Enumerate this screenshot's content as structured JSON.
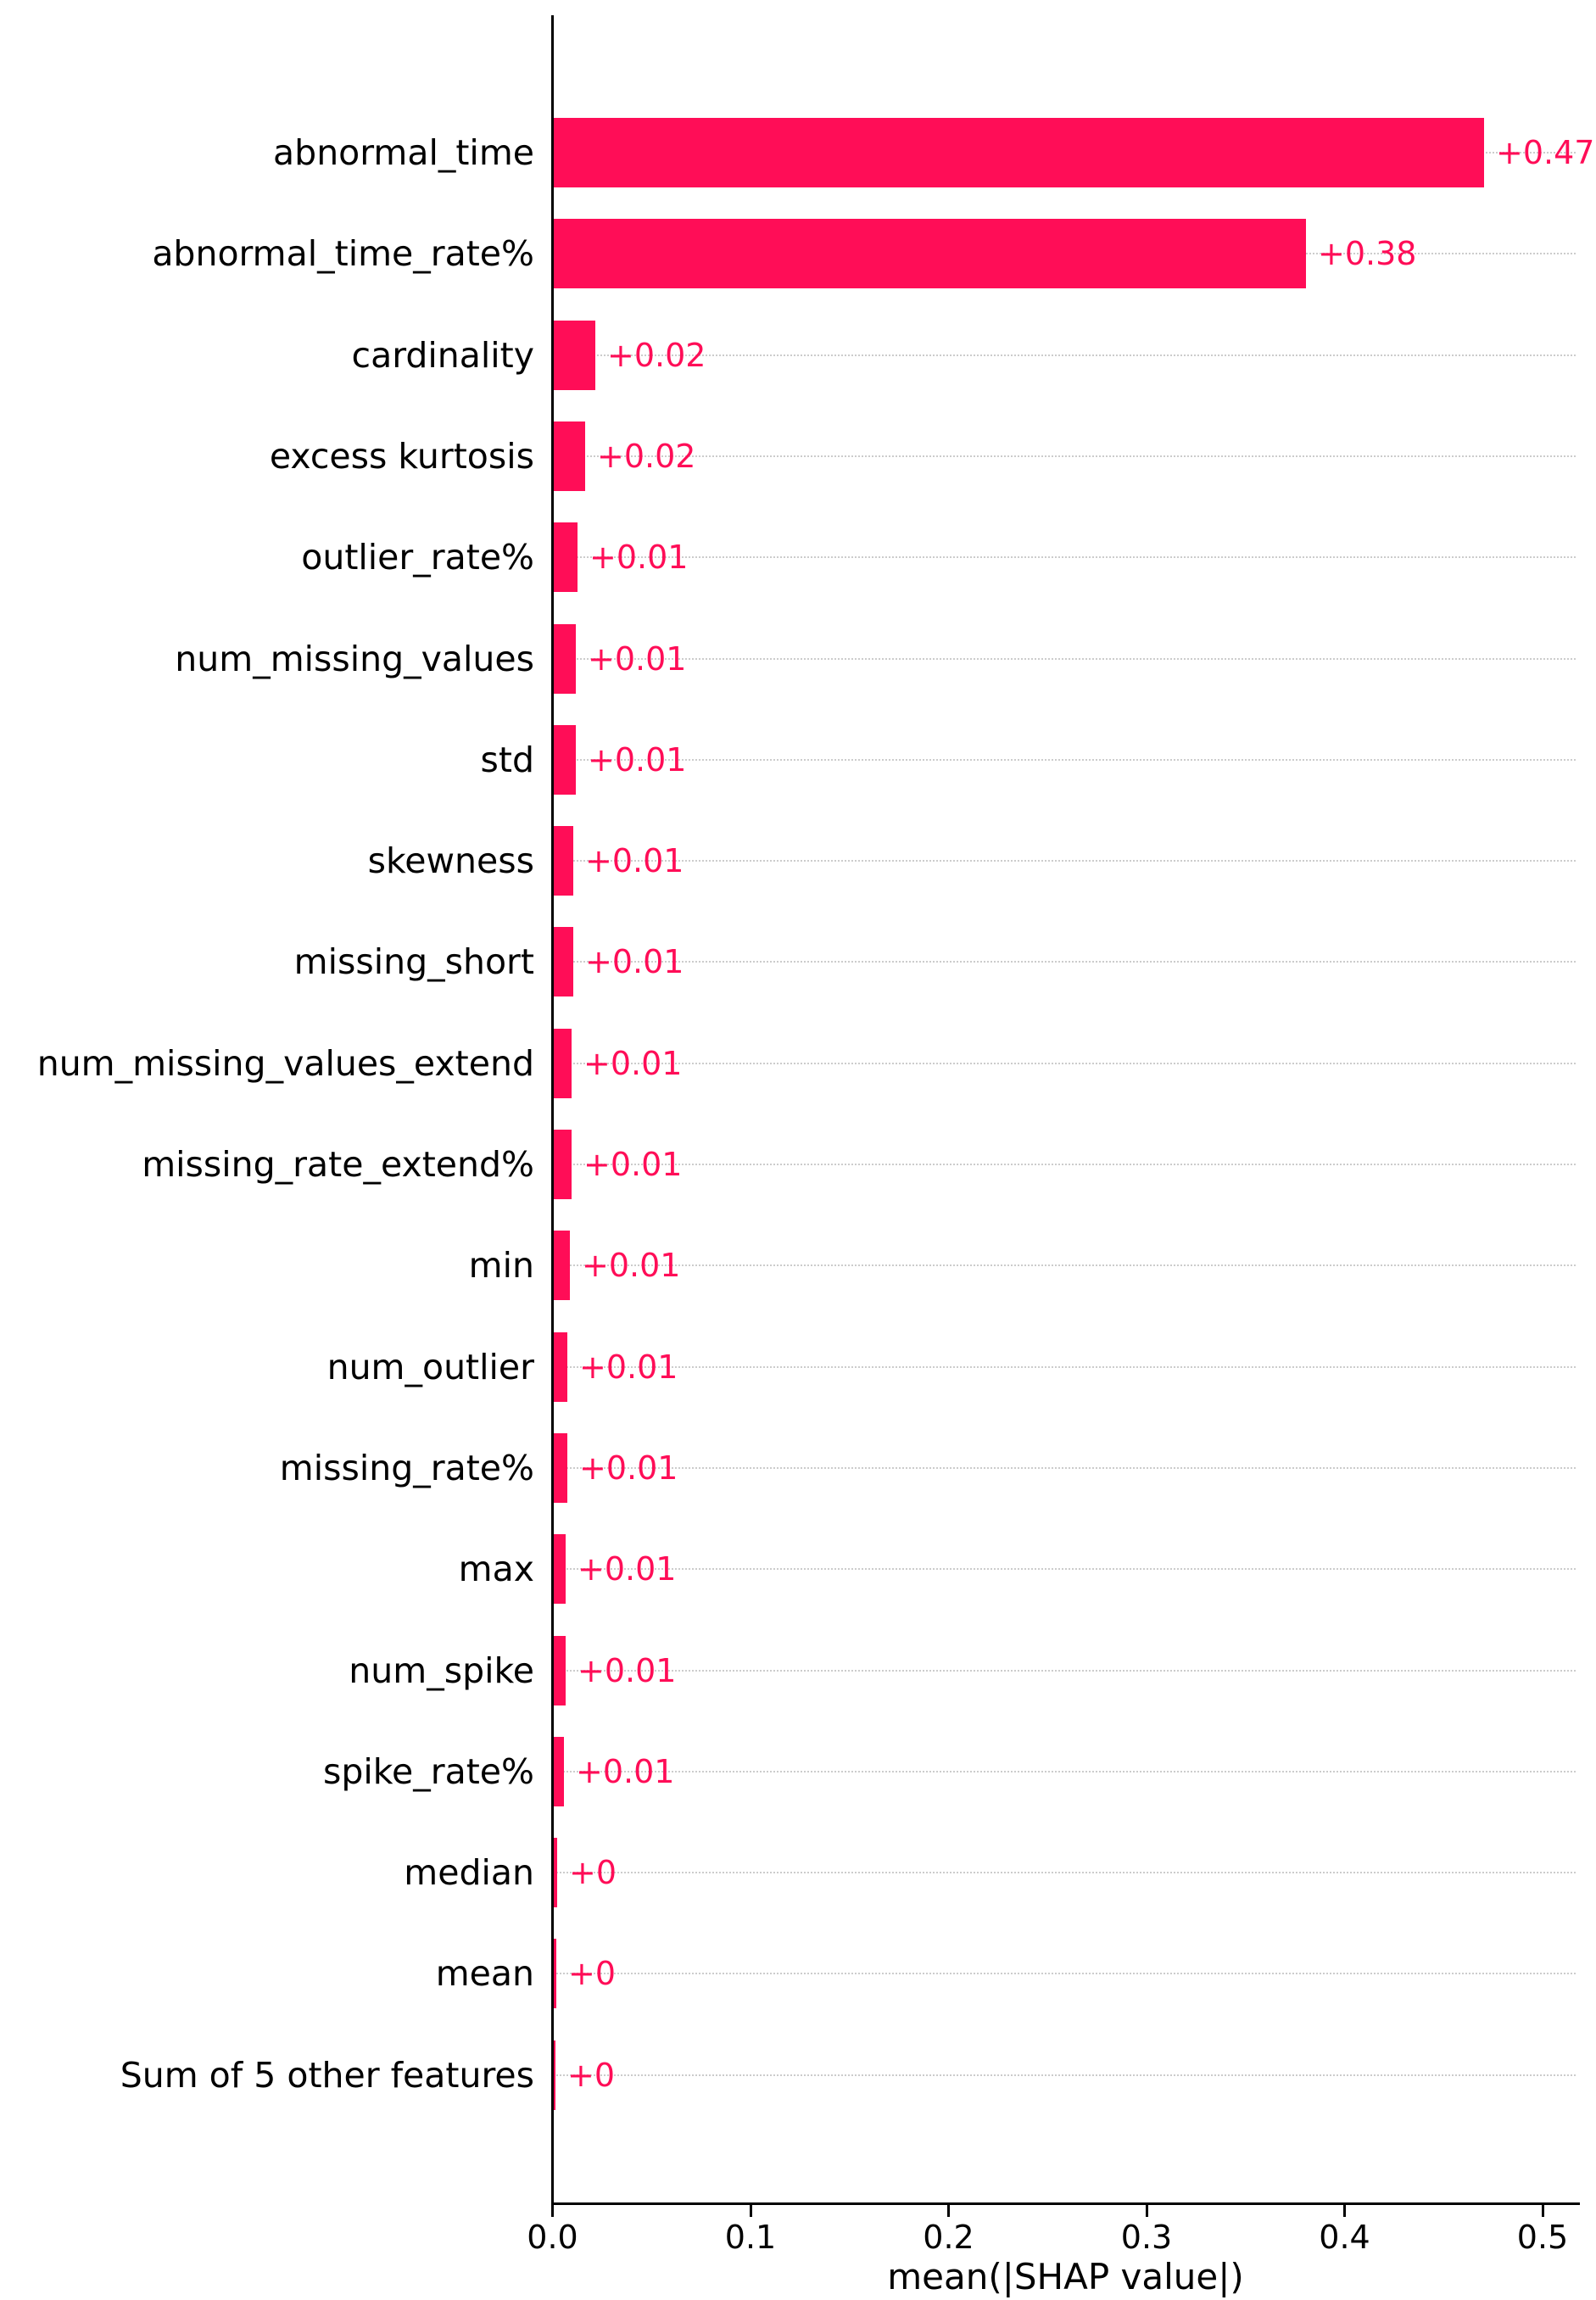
{
  "chart_data": {
    "type": "bar",
    "orientation": "horizontal",
    "title": "",
    "xlabel": "mean(|SHAP value|)",
    "ylabel": "",
    "xlim": [
      0,
      0.518
    ],
    "x_ticks": [
      0.0,
      0.1,
      0.2,
      0.3,
      0.4,
      0.5
    ],
    "x_tick_labels": [
      "0.0",
      "0.1",
      "0.2",
      "0.3",
      "0.4",
      "0.5"
    ],
    "bar_color": "#ff0d57",
    "value_label_color": "#ff0d57",
    "grid": "dotted horizontal gridline per category row",
    "legend": "none",
    "features": [
      {
        "label": "abnormal_time",
        "value": 0.47,
        "value_label": "+0.47"
      },
      {
        "label": "abnormal_time_rate%",
        "value": 0.38,
        "value_label": "+0.38"
      },
      {
        "label": "cardinality",
        "value": 0.021,
        "value_label": "+0.02"
      },
      {
        "label": "excess kurtosis",
        "value": 0.016,
        "value_label": "+0.02"
      },
      {
        "label": "outlier_rate%",
        "value": 0.012,
        "value_label": "+0.01"
      },
      {
        "label": "num_missing_values",
        "value": 0.011,
        "value_label": "+0.01"
      },
      {
        "label": "std",
        "value": 0.011,
        "value_label": "+0.01"
      },
      {
        "label": "skewness",
        "value": 0.01,
        "value_label": "+0.01"
      },
      {
        "label": "missing_short",
        "value": 0.01,
        "value_label": "+0.01"
      },
      {
        "label": "num_missing_values_extend",
        "value": 0.009,
        "value_label": "+0.01"
      },
      {
        "label": "missing_rate_extend%",
        "value": 0.009,
        "value_label": "+0.01"
      },
      {
        "label": "min",
        "value": 0.008,
        "value_label": "+0.01"
      },
      {
        "label": "num_outlier",
        "value": 0.007,
        "value_label": "+0.01"
      },
      {
        "label": "missing_rate%",
        "value": 0.007,
        "value_label": "+0.01"
      },
      {
        "label": "max",
        "value": 0.006,
        "value_label": "+0.01"
      },
      {
        "label": "num_spike",
        "value": 0.006,
        "value_label": "+0.01"
      },
      {
        "label": "spike_rate%",
        "value": 0.005,
        "value_label": "+0.01"
      },
      {
        "label": "median",
        "value": 0.0018,
        "value_label": "+0"
      },
      {
        "label": "mean",
        "value": 0.0012,
        "value_label": "+0"
      },
      {
        "label": "Sum of 5 other features",
        "value": 0.0006,
        "value_label": "+0"
      }
    ]
  }
}
